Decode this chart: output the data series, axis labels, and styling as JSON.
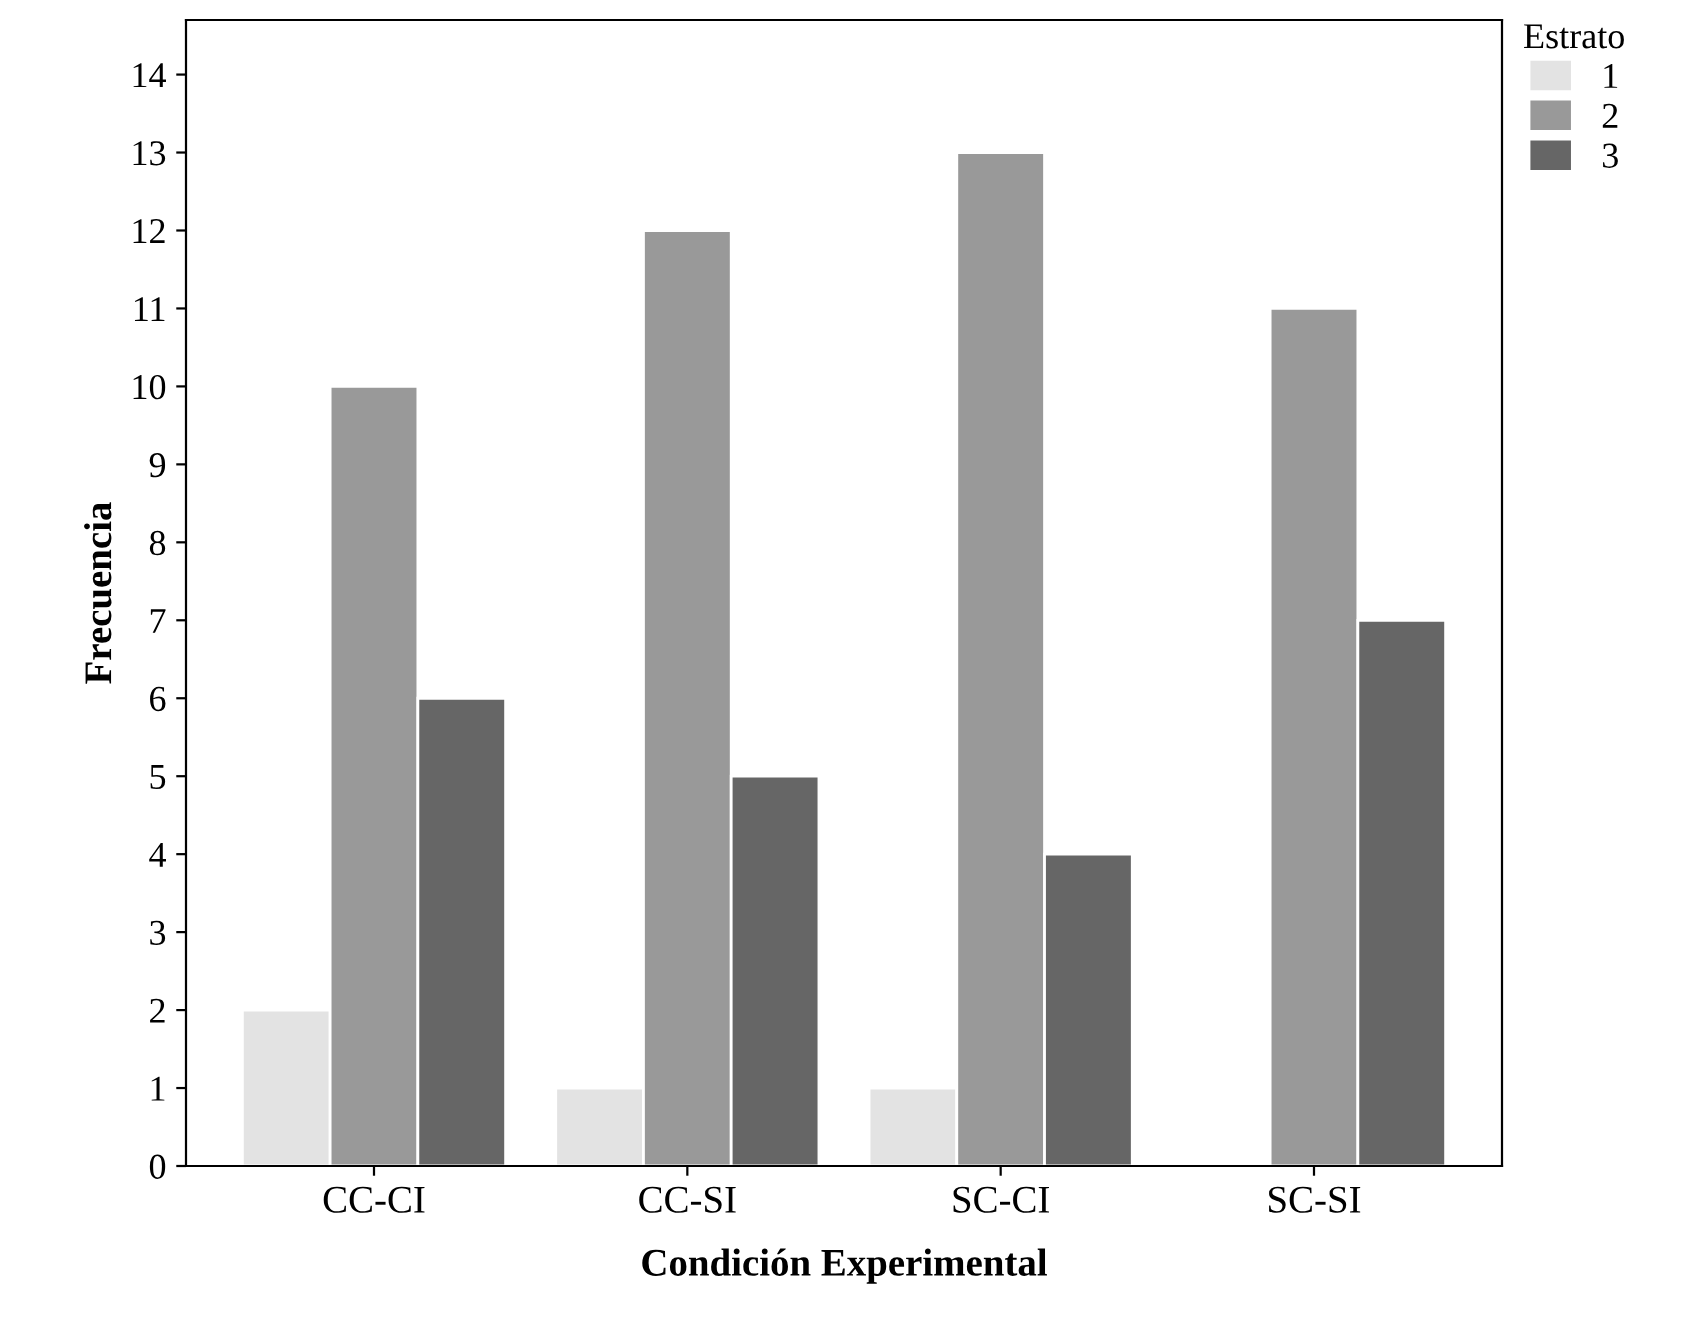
{
  "chart_data": {
    "type": "bar",
    "xlabel": "Condición Experimental",
    "ylabel": "Frecuencia",
    "legend_title": "Estrato",
    "categories": [
      "CC-CI",
      "CC-SI",
      "SC-CI",
      "SC-SI"
    ],
    "series": [
      {
        "name": "1",
        "color": "#e3e3e3",
        "values": [
          2,
          1,
          1,
          null
        ]
      },
      {
        "name": "2",
        "color": "#999999",
        "values": [
          10,
          12,
          13,
          11
        ]
      },
      {
        "name": "3",
        "color": "#666666",
        "values": [
          6,
          5,
          4,
          7
        ]
      }
    ],
    "ylim": [
      0,
      14.7
    ],
    "yticks": [
      0,
      1,
      2,
      3,
      4,
      5,
      6,
      7,
      8,
      9,
      10,
      11,
      12,
      13,
      14
    ],
    "grid": false,
    "legend": "top right"
  }
}
